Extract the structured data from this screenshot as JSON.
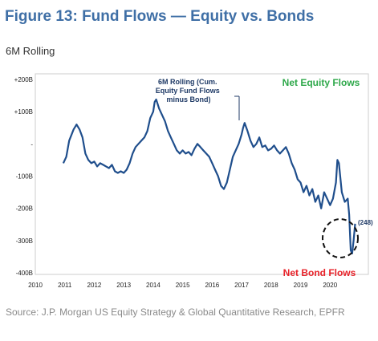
{
  "figure": {
    "title": "Figure 13: Fund Flows — Equity vs. Bonds",
    "subtitle": "6M Rolling",
    "source": "Source: J.P. Morgan US Equity Strategy & Global Quantitative Research, EPFR"
  },
  "colors": {
    "title": "#3f6fa6",
    "series": "#1f4e8c",
    "equity_label": "#2ea84a",
    "bond_label": "#e8232a"
  },
  "chart_data": {
    "type": "line",
    "title": "",
    "xlabel": "",
    "ylabel": "",
    "xlim": [
      2010,
      2021.3
    ],
    "ylim": [
      -400,
      200
    ],
    "grid": false,
    "x_ticks": [
      "2010",
      "2011",
      "2012",
      "2013",
      "2014",
      "2015",
      "2016",
      "2017",
      "2018",
      "2019",
      "2020"
    ],
    "y_ticks": [
      {
        "value": 200,
        "label": "+200B"
      },
      {
        "value": 100,
        "label": "+100B"
      },
      {
        "value": 0,
        "label": "-"
      },
      {
        "value": -100,
        "label": "-100B"
      },
      {
        "value": -200,
        "label": "-200B"
      },
      {
        "value": -300,
        "label": "-300B"
      },
      {
        "value": -400,
        "label": "-400B"
      }
    ],
    "series": [
      {
        "values": [
          [
            2010.95,
            -60
          ],
          [
            2011.05,
            -40
          ],
          [
            2011.15,
            10
          ],
          [
            2011.3,
            45
          ],
          [
            2011.4,
            60
          ],
          [
            2011.5,
            45
          ],
          [
            2011.6,
            20
          ],
          [
            2011.7,
            -30
          ],
          [
            2011.8,
            -50
          ],
          [
            2011.9,
            -60
          ],
          [
            2012.0,
            -55
          ],
          [
            2012.1,
            -70
          ],
          [
            2012.2,
            -60
          ],
          [
            2012.3,
            -65
          ],
          [
            2012.4,
            -70
          ],
          [
            2012.5,
            -75
          ],
          [
            2012.6,
            -65
          ],
          [
            2012.7,
            -85
          ],
          [
            2012.8,
            -90
          ],
          [
            2012.9,
            -85
          ],
          [
            2013.0,
            -90
          ],
          [
            2013.1,
            -80
          ],
          [
            2013.2,
            -60
          ],
          [
            2013.3,
            -30
          ],
          [
            2013.4,
            -10
          ],
          [
            2013.5,
            0
          ],
          [
            2013.6,
            10
          ],
          [
            2013.7,
            20
          ],
          [
            2013.8,
            40
          ],
          [
            2013.85,
            60
          ],
          [
            2013.9,
            80
          ],
          [
            2014.0,
            100
          ],
          [
            2014.05,
            130
          ],
          [
            2014.1,
            138
          ],
          [
            2014.2,
            110
          ],
          [
            2014.3,
            90
          ],
          [
            2014.4,
            70
          ],
          [
            2014.5,
            40
          ],
          [
            2014.6,
            20
          ],
          [
            2014.7,
            0
          ],
          [
            2014.8,
            -20
          ],
          [
            2014.9,
            -30
          ],
          [
            2015.0,
            -20
          ],
          [
            2015.1,
            -30
          ],
          [
            2015.2,
            -25
          ],
          [
            2015.3,
            -35
          ],
          [
            2015.4,
            -15
          ],
          [
            2015.5,
            0
          ],
          [
            2015.6,
            -10
          ],
          [
            2015.7,
            -20
          ],
          [
            2015.8,
            -30
          ],
          [
            2015.9,
            -40
          ],
          [
            2016.0,
            -60
          ],
          [
            2016.1,
            -80
          ],
          [
            2016.2,
            -100
          ],
          [
            2016.3,
            -130
          ],
          [
            2016.4,
            -140
          ],
          [
            2016.5,
            -120
          ],
          [
            2016.6,
            -80
          ],
          [
            2016.7,
            -40
          ],
          [
            2016.8,
            -20
          ],
          [
            2016.9,
            0
          ],
          [
            2017.0,
            30
          ],
          [
            2017.05,
            50
          ],
          [
            2017.1,
            65
          ],
          [
            2017.2,
            40
          ],
          [
            2017.3,
            10
          ],
          [
            2017.4,
            -10
          ],
          [
            2017.5,
            0
          ],
          [
            2017.6,
            20
          ],
          [
            2017.7,
            -10
          ],
          [
            2017.8,
            -5
          ],
          [
            2017.9,
            -20
          ],
          [
            2018.0,
            -15
          ],
          [
            2018.1,
            -5
          ],
          [
            2018.2,
            -20
          ],
          [
            2018.3,
            -30
          ],
          [
            2018.4,
            -20
          ],
          [
            2018.5,
            -10
          ],
          [
            2018.6,
            -30
          ],
          [
            2018.7,
            -60
          ],
          [
            2018.8,
            -80
          ],
          [
            2018.9,
            -110
          ],
          [
            2019.0,
            -120
          ],
          [
            2019.1,
            -150
          ],
          [
            2019.2,
            -130
          ],
          [
            2019.3,
            -160
          ],
          [
            2019.4,
            -140
          ],
          [
            2019.5,
            -180
          ],
          [
            2019.6,
            -160
          ],
          [
            2019.7,
            -200
          ],
          [
            2019.8,
            -150
          ],
          [
            2019.9,
            -170
          ],
          [
            2020.0,
            -190
          ],
          [
            2020.1,
            -170
          ],
          [
            2020.2,
            -120
          ],
          [
            2020.25,
            -50
          ],
          [
            2020.3,
            -60
          ],
          [
            2020.4,
            -150
          ],
          [
            2020.5,
            -180
          ],
          [
            2020.6,
            -170
          ],
          [
            2020.65,
            -220
          ],
          [
            2020.7,
            -330
          ],
          [
            2020.75,
            -340
          ],
          [
            2020.8,
            -300
          ],
          [
            2020.85,
            -248
          ]
        ]
      }
    ],
    "annotations": {
      "callout": "6M Rolling (Cum. Equity Fund Flows minus Bond)",
      "equity": "Net Equity Flows",
      "bond": "Net Bond Flows",
      "last_value": "(248)"
    }
  }
}
